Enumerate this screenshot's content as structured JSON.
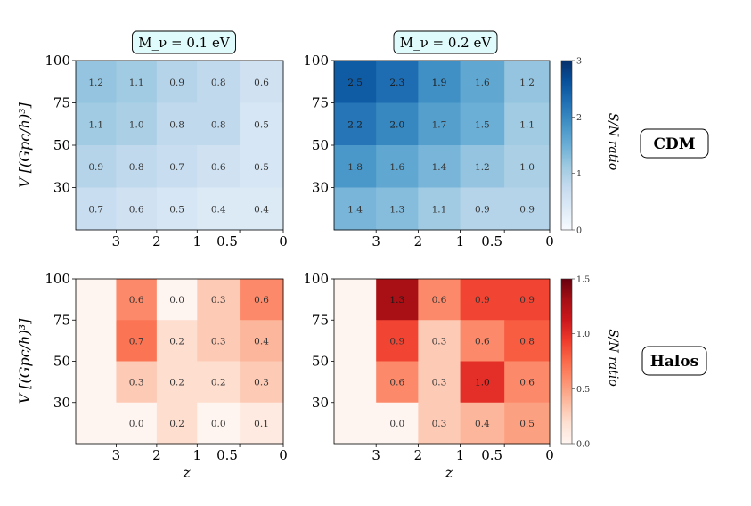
{
  "figure": {
    "row_labels": [
      "CDM",
      "Halos"
    ]
  },
  "colorbars": [
    {
      "label": "S/N ratio",
      "scheme": "blues",
      "ticks": [
        "0",
        "1",
        "2",
        "3"
      ],
      "range": [
        0,
        3
      ]
    },
    {
      "label": "S/N ratio",
      "scheme": "reds",
      "ticks": [
        "0.0",
        "0.5",
        "1.0",
        "1.5"
      ],
      "range": [
        0,
        1.5
      ]
    }
  ],
  "chart_data": [
    {
      "type": "heatmap",
      "title": "M_ν = 0.1 eV",
      "row": "CDM",
      "xlabel": "",
      "ylabel": "V [(Gpc/h)³]",
      "x_ticks": [
        "3",
        "2",
        "1",
        "0.5",
        "0"
      ],
      "y_ticks": [
        "100",
        "75",
        "50",
        "30"
      ],
      "columns": [
        "z>3",
        "3-2",
        "2-1",
        "1-0.5",
        "0.5-0"
      ],
      "rows": [
        "100",
        "75",
        "50",
        "30"
      ],
      "values": [
        [
          1.2,
          1.1,
          0.9,
          0.8,
          0.6
        ],
        [
          1.1,
          1.0,
          0.8,
          0.8,
          0.5
        ],
        [
          0.9,
          0.8,
          0.7,
          0.6,
          0.5
        ],
        [
          0.7,
          0.6,
          0.5,
          0.4,
          0.4
        ]
      ],
      "vmax": 3
    },
    {
      "type": "heatmap",
      "title": "M_ν = 0.2 eV",
      "row": "CDM",
      "xlabel": "",
      "ylabel": "",
      "x_ticks": [
        "3",
        "2",
        "1",
        "0.5",
        "0"
      ],
      "y_ticks": [
        "100",
        "75",
        "50",
        "30"
      ],
      "columns": [
        "z>3",
        "3-2",
        "2-1",
        "1-0.5",
        "0.5-0"
      ],
      "rows": [
        "100",
        "75",
        "50",
        "30"
      ],
      "values": [
        [
          2.5,
          2.3,
          1.9,
          1.6,
          1.2
        ],
        [
          2.2,
          2.0,
          1.7,
          1.5,
          1.1
        ],
        [
          1.8,
          1.6,
          1.4,
          1.2,
          1.0
        ],
        [
          1.4,
          1.3,
          1.1,
          0.9,
          0.9
        ]
      ],
      "vmax": 3
    },
    {
      "type": "heatmap",
      "title": "",
      "row": "Halos",
      "xlabel": "z",
      "ylabel": "V [(Gpc/h)³]",
      "x_ticks": [
        "3",
        "2",
        "1",
        "0.5",
        "0"
      ],
      "y_ticks": [
        "100",
        "75",
        "50",
        "30"
      ],
      "columns": [
        "z>3",
        "3-2",
        "2-1",
        "1-0.5",
        "0.5-0"
      ],
      "rows": [
        "100",
        "75",
        "50",
        "30"
      ],
      "values": [
        [
          null,
          0.6,
          0.0,
          0.3,
          0.6
        ],
        [
          null,
          0.7,
          0.2,
          0.3,
          0.4
        ],
        [
          null,
          0.3,
          0.2,
          0.2,
          0.3
        ],
        [
          null,
          0.0,
          0.2,
          0.0,
          0.1
        ]
      ],
      "vmax": 1.5
    },
    {
      "type": "heatmap",
      "title": "",
      "row": "Halos",
      "xlabel": "z",
      "ylabel": "",
      "x_ticks": [
        "3",
        "2",
        "1",
        "0.5",
        "0"
      ],
      "y_ticks": [
        "100",
        "75",
        "50",
        "30"
      ],
      "columns": [
        "z>3",
        "3-2",
        "2-1",
        "1-0.5",
        "0.5-0"
      ],
      "rows": [
        "100",
        "75",
        "50",
        "30"
      ],
      "values": [
        [
          null,
          1.3,
          0.6,
          0.9,
          0.9
        ],
        [
          null,
          0.9,
          0.3,
          0.6,
          0.8
        ],
        [
          null,
          0.6,
          0.3,
          1.0,
          0.6
        ],
        [
          null,
          0.0,
          0.3,
          0.4,
          0.5
        ]
      ],
      "vmax": 1.5
    }
  ]
}
